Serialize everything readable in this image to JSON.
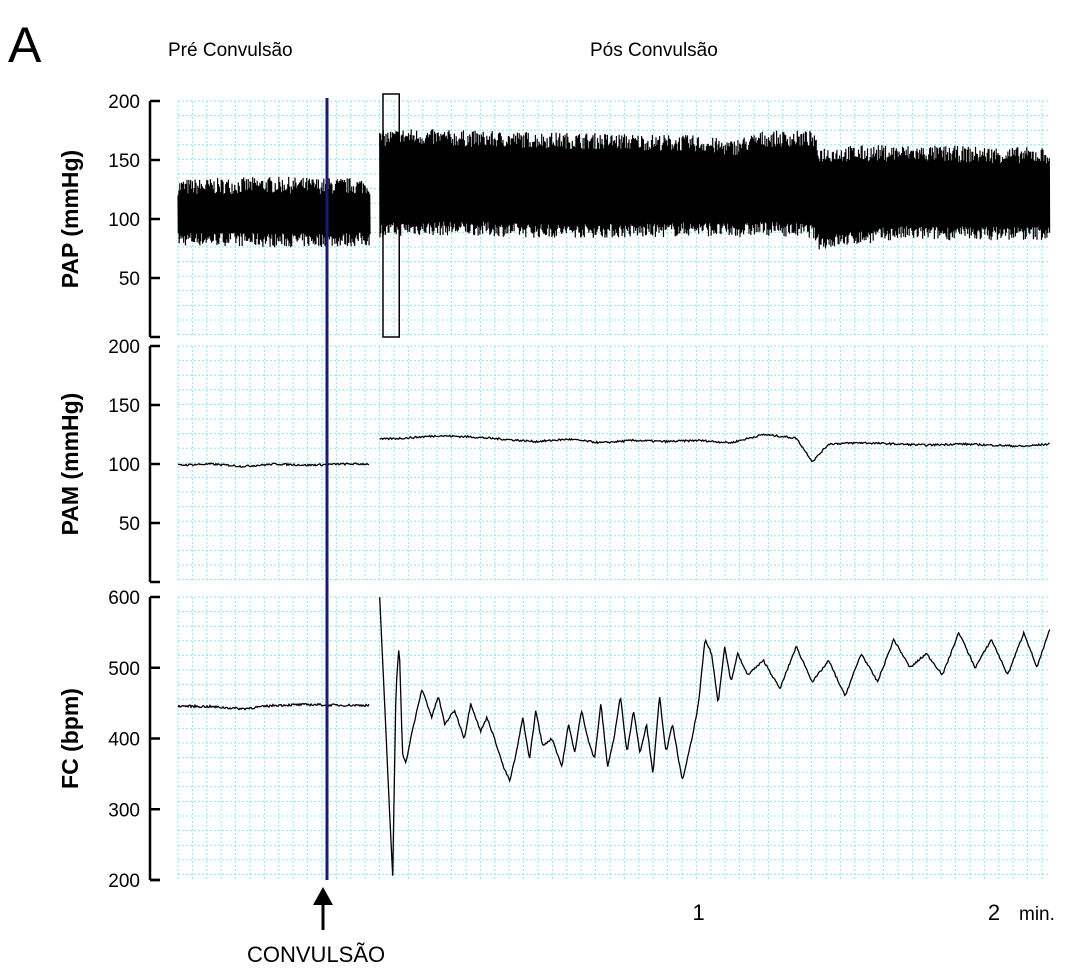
{
  "panel_letter": "A",
  "phase_labels": {
    "pre": "Pré Convulsão",
    "post": "Pós Convulsão"
  },
  "event": {
    "label": "CONVULSÃO",
    "time_min": 0
  },
  "colors": {
    "grid": "#8ee6f0",
    "trace": "#000000",
    "event_line": "#1a1a6e"
  },
  "x_axis": {
    "unit_label": "min.",
    "ticks": [
      {
        "value": 1,
        "label": "1"
      },
      {
        "value": 2,
        "label": "2"
      }
    ],
    "range_min": [
      -0.6,
      2.08
    ]
  },
  "chart_data": [
    {
      "type": "line",
      "ylabel": "PAP (mmHg)",
      "ylim": [
        0,
        200
      ],
      "yticks": [
        50,
        100,
        150,
        200
      ],
      "grid": true,
      "series": [
        {
          "x": [
            -0.6,
            -0.45,
            -0.3,
            -0.15,
            -0.01
          ],
          "upper": [
            127,
            128,
            129,
            128,
            128
          ],
          "lower": [
            83,
            83,
            82,
            82,
            83
          ],
          "style": "dense-pulsatile"
        },
        {
          "x": [
            0.02,
            0.1,
            0.3,
            0.5,
            0.85,
            1.0,
            1.1,
            1.2,
            1.35,
            1.37,
            1.6,
            1.8,
            2.0,
            2.08
          ],
          "upper": [
            168,
            170,
            168,
            167,
            165,
            164,
            160,
            168,
            168,
            155,
            156,
            155,
            154,
            154
          ],
          "lower": [
            90,
            92,
            92,
            90,
            90,
            92,
            90,
            92,
            90,
            80,
            88,
            88,
            88,
            88
          ],
          "style": "dense-pulsatile"
        }
      ],
      "annotation": {
        "type": "box",
        "x_range": [
          0.03,
          0.08
        ]
      }
    },
    {
      "type": "line",
      "ylabel": "PAM (mmHg)",
      "ylim": [
        0,
        200
      ],
      "yticks": [
        50,
        100,
        150,
        200
      ],
      "grid": true,
      "series": [
        {
          "x": [
            -0.6,
            -0.5,
            -0.4,
            -0.3,
            -0.2,
            -0.1,
            -0.01
          ],
          "y": [
            99,
            100,
            98,
            100,
            99,
            100,
            100
          ]
        },
        {
          "x": [
            0.02,
            0.1,
            0.2,
            0.3,
            0.4,
            0.5,
            0.6,
            0.7,
            0.8,
            0.9,
            1.0,
            1.1,
            1.2,
            1.3,
            1.35,
            1.4,
            1.5,
            1.6,
            1.7,
            1.8,
            1.9,
            2.0,
            2.08
          ],
          "y": [
            121,
            122,
            124,
            123,
            121,
            119,
            121,
            118,
            120,
            119,
            120,
            118,
            125,
            122,
            102,
            117,
            118,
            117,
            116,
            117,
            116,
            115,
            117
          ]
        }
      ]
    },
    {
      "type": "line",
      "ylabel": "FC (bpm)",
      "ylim": [
        200,
        600
      ],
      "yticks": [
        200,
        300,
        400,
        500,
        600
      ],
      "grid": true,
      "series": [
        {
          "x": [
            -0.6,
            -0.5,
            -0.4,
            -0.3,
            -0.2,
            -0.1,
            -0.01
          ],
          "y": [
            446,
            445,
            442,
            447,
            448,
            447,
            447
          ]
        },
        {
          "x": [
            0.02,
            0.04,
            0.05,
            0.06,
            0.07,
            0.08,
            0.09,
            0.1,
            0.12,
            0.15,
            0.18,
            0.2,
            0.22,
            0.25,
            0.28,
            0.3,
            0.33,
            0.35,
            0.38,
            0.4,
            0.42,
            0.44,
            0.46,
            0.48,
            0.5,
            0.52,
            0.55,
            0.58,
            0.6,
            0.62,
            0.64,
            0.66,
            0.68,
            0.7,
            0.72,
            0.74,
            0.76,
            0.78,
            0.8,
            0.82,
            0.84,
            0.86,
            0.88,
            0.9,
            0.92,
            0.95,
            0.98,
            1.0,
            1.02,
            1.04,
            1.06,
            1.08,
            1.1,
            1.12,
            1.15,
            1.2,
            1.25,
            1.3,
            1.35,
            1.4,
            1.45,
            1.5,
            1.55,
            1.6,
            1.65,
            1.7,
            1.75,
            1.8,
            1.85,
            1.9,
            1.95,
            2.0,
            2.04,
            2.08
          ],
          "y": [
            600,
            400,
            300,
            205,
            470,
            535,
            380,
            365,
            410,
            470,
            430,
            460,
            420,
            440,
            400,
            450,
            410,
            430,
            390,
            360,
            340,
            380,
            430,
            370,
            440,
            390,
            400,
            360,
            420,
            380,
            440,
            400,
            370,
            450,
            360,
            400,
            460,
            380,
            440,
            380,
            420,
            350,
            460,
            380,
            420,
            340,
            400,
            450,
            540,
            520,
            450,
            530,
            480,
            520,
            490,
            510,
            470,
            530,
            480,
            510,
            460,
            520,
            480,
            540,
            500,
            520,
            490,
            550,
            500,
            540,
            490,
            550,
            500,
            555
          ]
        }
      ]
    }
  ]
}
